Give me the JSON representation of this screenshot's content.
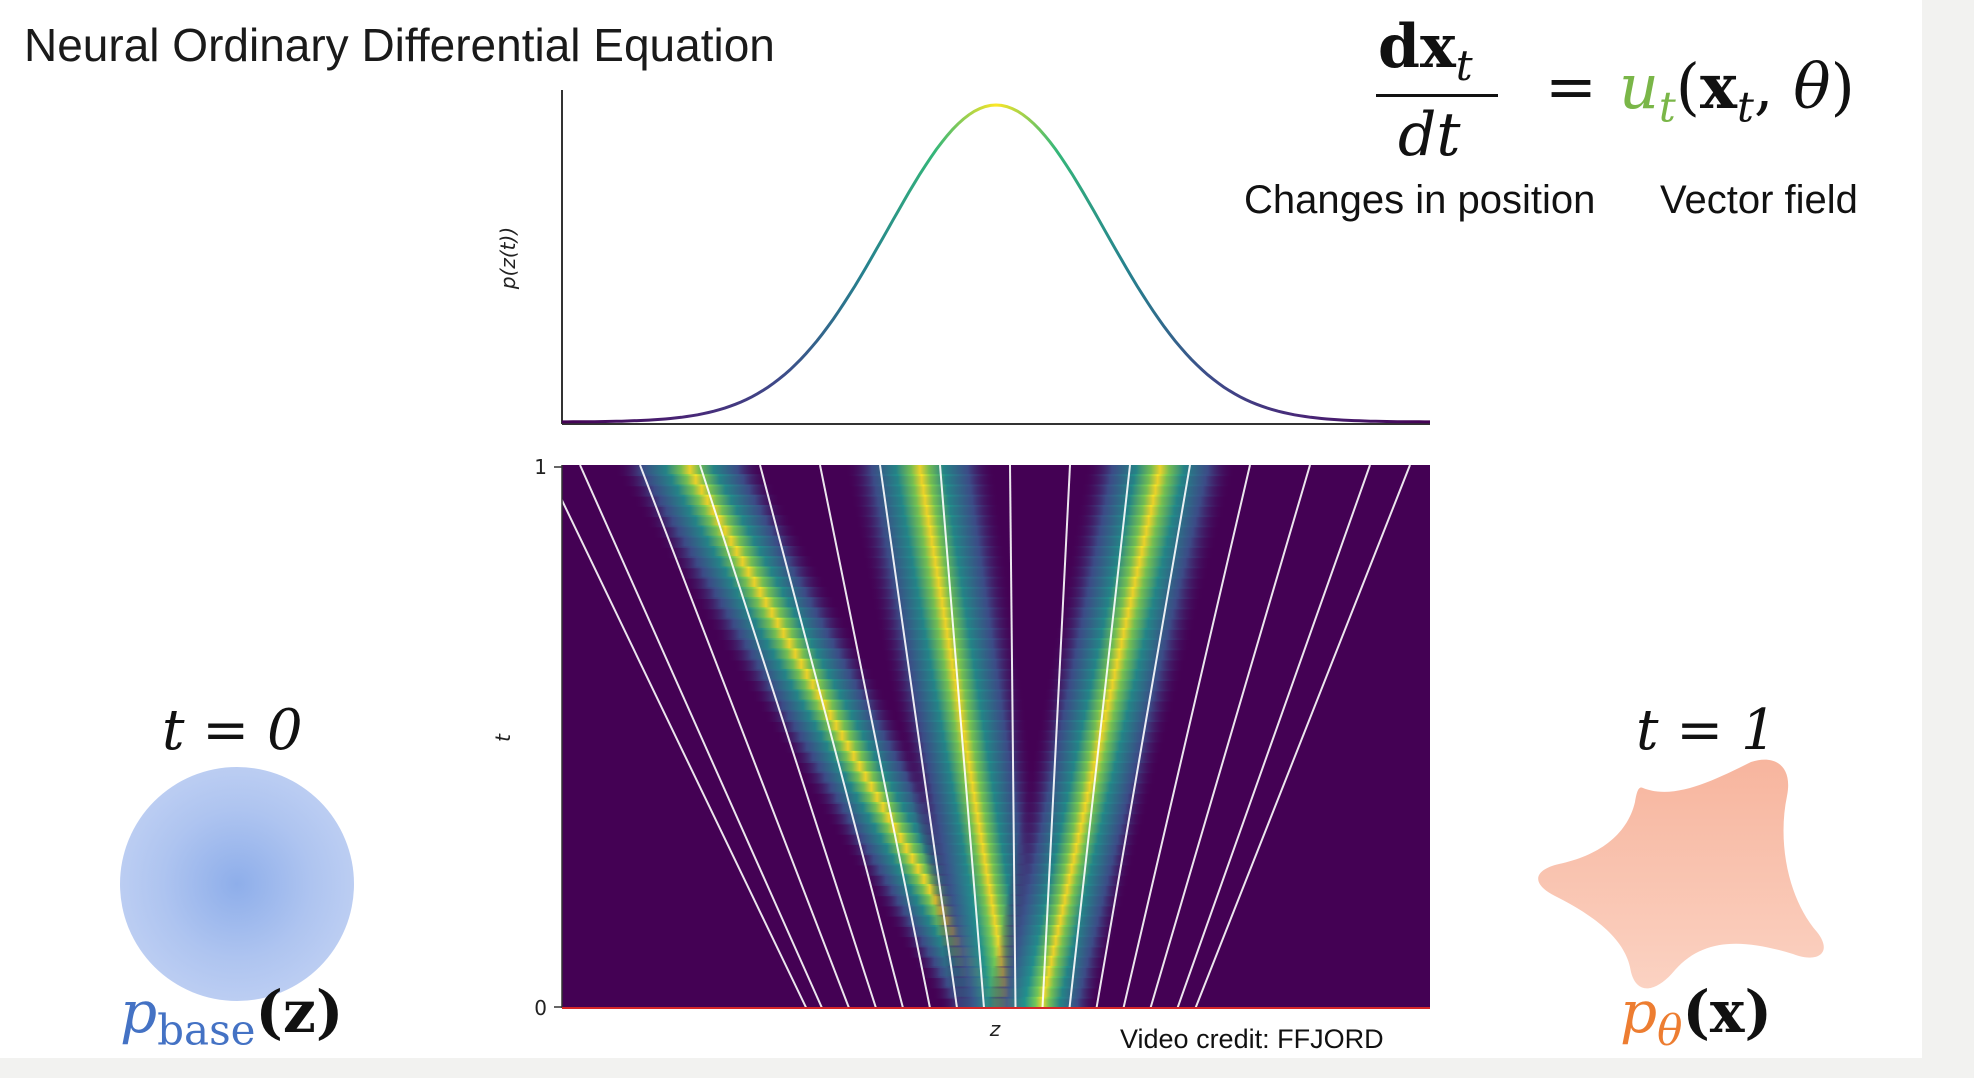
{
  "title": "Neural  Ordinary Differential Equation",
  "equation": {
    "numerator": "dx",
    "numerator_sub": "t",
    "denominator": "dt",
    "equals": "=",
    "u": "u",
    "u_sub": "t",
    "open_paren": "(",
    "x": "x",
    "x_sub": "t",
    "comma": ", ",
    "theta": "θ",
    "close_paren": ")",
    "u_color": "#7ab648"
  },
  "labels": {
    "changes_in_position": "Changes in position",
    "vector_field": "Vector field"
  },
  "start": {
    "t_label": "t = 0",
    "dist_symbol": "p",
    "dist_sub": "base",
    "dist_arg": "(z)",
    "color": "#4472c4"
  },
  "end": {
    "t_label": "t = 1",
    "dist_symbol": "p",
    "dist_sub": "θ",
    "dist_arg": "(x)",
    "color": "#ed7d31"
  },
  "credit": "Video credit: FFJORD",
  "chart_data": [
    {
      "type": "line",
      "ylabel": "p(z(t))",
      "xlabel": "",
      "x": [
        -4,
        -3,
        -2,
        -1.5,
        -1,
        -0.5,
        0,
        0.5,
        1,
        1.5,
        2,
        3,
        4
      ],
      "y": [
        0.0001,
        0.004,
        0.054,
        0.13,
        0.242,
        0.352,
        0.399,
        0.352,
        0.242,
        0.13,
        0.054,
        0.004,
        0.0001
      ],
      "colormap": "viridis"
    },
    {
      "type": "heatmap",
      "xlabel": "z",
      "ylabel": "t",
      "y_ticks": [
        "0",
        "1"
      ],
      "ylim": [
        0,
        1
      ],
      "colormap": "viridis",
      "streamlines": true,
      "streamline_color": "#ffffff"
    }
  ]
}
